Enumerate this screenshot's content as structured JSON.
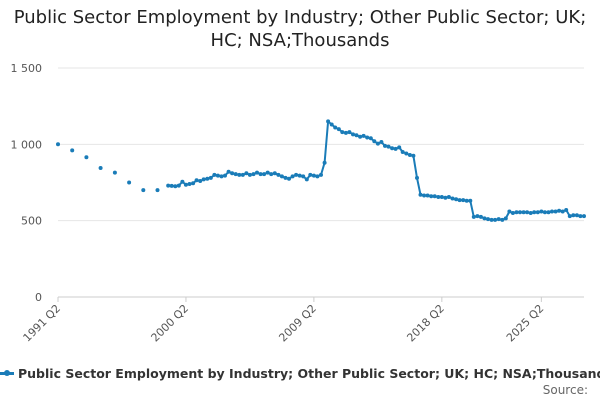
{
  "chart_data": {
    "type": "line",
    "title": "Public Sector Employment by Industry; Other Public Sector; UK; HC; NSA;Thousands",
    "xlabel": "",
    "ylabel": "",
    "ylim": [
      0,
      1500
    ],
    "y_ticks": [
      0,
      500,
      1000,
      1500
    ],
    "y_tick_labels": [
      "0",
      "500",
      "1 000",
      "1 500"
    ],
    "x_tick_labels": [
      "1991 Q2",
      "2000 Q2",
      "2009 Q2",
      "2018 Q2",
      "2025 Q2"
    ],
    "x_tick_values": [
      1991.25,
      2000.25,
      2009.25,
      2018.25,
      2025.25
    ],
    "grid": true,
    "legend_position": "bottom",
    "series": [
      {
        "name": "Public Sector Employment by Industry; Other Public Sector; UK; HC; NSA;Thousands",
        "color": "#1a7cb8",
        "points": [
          [
            1991.25,
            1000
          ],
          [
            1992.25,
            960
          ],
          [
            1993.25,
            915
          ],
          [
            1994.25,
            845
          ],
          [
            1995.25,
            815
          ],
          [
            1996.25,
            750
          ],
          [
            1997.25,
            700
          ],
          [
            1998.25,
            700
          ],
          [
            1999.0,
            730
          ],
          [
            1999.25,
            728
          ],
          [
            1999.5,
            725
          ],
          [
            1999.75,
            730
          ],
          [
            2000.0,
            755
          ],
          [
            2000.25,
            735
          ],
          [
            2000.5,
            740
          ],
          [
            2000.75,
            745
          ],
          [
            2001.0,
            765
          ],
          [
            2001.25,
            760
          ],
          [
            2001.5,
            770
          ],
          [
            2001.75,
            775
          ],
          [
            2002.0,
            780
          ],
          [
            2002.25,
            800
          ],
          [
            2002.5,
            795
          ],
          [
            2002.75,
            790
          ],
          [
            2003.0,
            795
          ],
          [
            2003.25,
            820
          ],
          [
            2003.5,
            810
          ],
          [
            2003.75,
            805
          ],
          [
            2004.0,
            800
          ],
          [
            2004.25,
            800
          ],
          [
            2004.5,
            810
          ],
          [
            2004.75,
            800
          ],
          [
            2005.0,
            805
          ],
          [
            2005.25,
            815
          ],
          [
            2005.5,
            805
          ],
          [
            2005.75,
            805
          ],
          [
            2006.0,
            815
          ],
          [
            2006.25,
            805
          ],
          [
            2006.5,
            810
          ],
          [
            2006.75,
            800
          ],
          [
            2007.0,
            790
          ],
          [
            2007.25,
            780
          ],
          [
            2007.5,
            775
          ],
          [
            2007.75,
            790
          ],
          [
            2008.0,
            800
          ],
          [
            2008.25,
            795
          ],
          [
            2008.5,
            790
          ],
          [
            2008.75,
            770
          ],
          [
            2009.0,
            800
          ],
          [
            2009.25,
            795
          ],
          [
            2009.5,
            790
          ],
          [
            2009.75,
            800
          ],
          [
            2010.0,
            880
          ],
          [
            2010.25,
            1150
          ],
          [
            2010.5,
            1130
          ],
          [
            2010.75,
            1110
          ],
          [
            2011.0,
            1100
          ],
          [
            2011.25,
            1080
          ],
          [
            2011.5,
            1075
          ],
          [
            2011.75,
            1080
          ],
          [
            2012.0,
            1065
          ],
          [
            2012.25,
            1060
          ],
          [
            2012.5,
            1050
          ],
          [
            2012.75,
            1055
          ],
          [
            2013.0,
            1045
          ],
          [
            2013.25,
            1040
          ],
          [
            2013.5,
            1020
          ],
          [
            2013.75,
            1005
          ],
          [
            2014.0,
            1015
          ],
          [
            2014.25,
            990
          ],
          [
            2014.5,
            985
          ],
          [
            2014.75,
            975
          ],
          [
            2015.0,
            970
          ],
          [
            2015.25,
            980
          ],
          [
            2015.5,
            950
          ],
          [
            2015.75,
            940
          ],
          [
            2016.0,
            930
          ],
          [
            2016.25,
            925
          ],
          [
            2016.5,
            780
          ],
          [
            2016.75,
            670
          ],
          [
            2017.0,
            665
          ],
          [
            2017.25,
            665
          ],
          [
            2017.5,
            660
          ],
          [
            2017.75,
            660
          ],
          [
            2018.0,
            655
          ],
          [
            2018.25,
            655
          ],
          [
            2018.5,
            650
          ],
          [
            2018.75,
            655
          ],
          [
            2019.0,
            645
          ],
          [
            2019.25,
            640
          ],
          [
            2019.5,
            635
          ],
          [
            2019.75,
            635
          ],
          [
            2020.0,
            630
          ],
          [
            2020.25,
            630
          ],
          [
            2020.5,
            525
          ],
          [
            2020.75,
            530
          ],
          [
            2021.0,
            525
          ],
          [
            2021.25,
            515
          ],
          [
            2021.5,
            510
          ],
          [
            2021.75,
            505
          ],
          [
            2022.0,
            505
          ],
          [
            2022.25,
            510
          ],
          [
            2022.5,
            505
          ],
          [
            2022.75,
            515
          ],
          [
            2023.0,
            560
          ],
          [
            2023.25,
            550
          ],
          [
            2023.5,
            555
          ],
          [
            2023.75,
            555
          ],
          [
            2024.0,
            555
          ],
          [
            2024.25,
            555
          ],
          [
            2024.5,
            550
          ],
          [
            2024.75,
            555
          ],
          [
            2025.0,
            555
          ],
          [
            2025.25,
            560
          ],
          [
            2025.5,
            555
          ],
          [
            2025.75,
            555
          ],
          [
            2026.0,
            560
          ],
          [
            2026.25,
            560
          ],
          [
            2026.5,
            565
          ],
          [
            2026.75,
            560
          ],
          [
            2027.0,
            570
          ],
          [
            2027.25,
            530
          ],
          [
            2027.5,
            535
          ],
          [
            2027.75,
            535
          ],
          [
            2028.0,
            530
          ],
          [
            2028.25,
            530
          ]
        ]
      }
    ],
    "x_range": [
      1991.25,
      2028.25
    ]
  },
  "legend": {
    "label": "Public Sector Employment by Industry; Other Public Sector; UK; HC; NSA;Thousands"
  },
  "source": {
    "label": "Source:"
  },
  "colors": {
    "line": "#1a7cb8",
    "grid": "#e6e6e6",
    "axis": "#cccccc"
  }
}
